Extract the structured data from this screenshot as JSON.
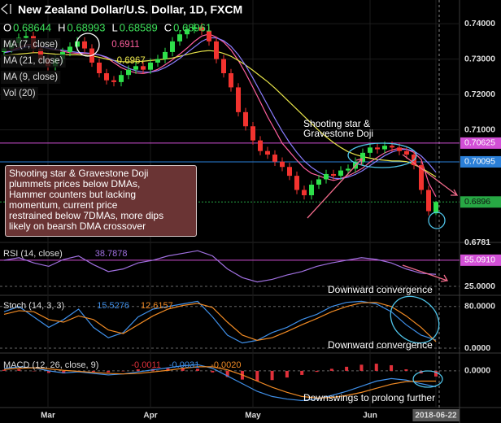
{
  "chart_data": [
    {
      "type": "candlestick",
      "title": "New Zealand Dollar/U.S. Dollar, 1D, FXCM",
      "ohlc_header": [
        {
          "key": "O",
          "value": 0.68644
        },
        {
          "key": "H",
          "value": 0.68993
        },
        {
          "key": "L",
          "value": 0.68589
        },
        {
          "key": "C",
          "value": 0.68961
        }
      ],
      "categories": [
        null,
        null,
        null,
        null,
        null,
        null,
        "Mar",
        null,
        null,
        null,
        null,
        null,
        null,
        null,
        null,
        null,
        null,
        null,
        null,
        null,
        "Apr",
        null,
        null,
        null,
        null,
        null,
        null,
        null,
        null,
        null,
        null,
        null,
        null,
        null,
        "May",
        null,
        null,
        null,
        null,
        null,
        null,
        null,
        null,
        null,
        null,
        null,
        null,
        null,
        null,
        null,
        "Jun",
        null,
        null,
        null,
        null,
        null,
        null,
        null,
        null,
        "2018-06-22"
      ],
      "open": [
        0.732,
        0.733,
        0.7345,
        0.736,
        0.7365,
        0.733,
        0.73,
        0.728,
        0.73,
        0.732,
        0.7335,
        0.735,
        0.733,
        0.729,
        0.726,
        0.724,
        0.7235,
        0.7255,
        0.727,
        0.728,
        0.727,
        0.729,
        0.73,
        0.732,
        0.735,
        0.737,
        0.7385,
        0.739,
        0.738,
        0.735,
        0.73,
        0.726,
        0.722,
        0.715,
        0.711,
        0.707,
        0.704,
        0.703,
        0.701,
        0.6995,
        0.697,
        0.693,
        0.6915,
        0.6945,
        0.696,
        0.6975,
        0.697,
        0.6985,
        0.699,
        0.701,
        0.7035,
        0.705,
        0.7045,
        0.7055,
        0.705,
        0.704,
        0.703,
        0.7,
        0.693,
        0.6864
      ],
      "high": [
        0.7342,
        0.7357,
        0.7372,
        0.7377,
        0.7377,
        0.7342,
        0.7312,
        0.7312,
        0.7332,
        0.7347,
        0.7362,
        0.7362,
        0.7342,
        0.7302,
        0.7272,
        0.7252,
        0.7267,
        0.7282,
        0.7292,
        0.7292,
        0.7302,
        0.7312,
        0.7332,
        0.7362,
        0.7382,
        0.7397,
        0.7402,
        0.7402,
        0.7392,
        0.7362,
        0.7312,
        0.7272,
        0.7232,
        0.7162,
        0.7122,
        0.7082,
        0.7052,
        0.7042,
        0.7022,
        0.7007,
        0.6982,
        0.6942,
        0.6957,
        0.6972,
        0.6987,
        0.6987,
        0.6997,
        0.7002,
        0.7022,
        0.7047,
        0.7062,
        0.7062,
        0.7067,
        0.7067,
        0.7062,
        0.7052,
        0.7042,
        0.7012,
        0.6942,
        0.6899
      ],
      "low": [
        0.7308,
        0.7318,
        0.7333,
        0.7348,
        0.7318,
        0.7288,
        0.7268,
        0.7268,
        0.7288,
        0.7308,
        0.7323,
        0.7318,
        0.7278,
        0.7248,
        0.7228,
        0.7223,
        0.7223,
        0.7243,
        0.7258,
        0.7258,
        0.7258,
        0.7278,
        0.7288,
        0.7308,
        0.7338,
        0.7358,
        0.7373,
        0.7368,
        0.7338,
        0.7288,
        0.7248,
        0.7208,
        0.7138,
        0.7098,
        0.7058,
        0.7028,
        0.7018,
        0.6998,
        0.6983,
        0.6958,
        0.6918,
        0.6903,
        0.6903,
        0.6933,
        0.6948,
        0.6958,
        0.6958,
        0.6973,
        0.6978,
        0.6998,
        0.7023,
        0.7033,
        0.7033,
        0.7038,
        0.7028,
        0.7018,
        0.6988,
        0.6918,
        0.6858,
        0.6859
      ],
      "close": [
        0.733,
        0.7345,
        0.736,
        0.7365,
        0.733,
        0.73,
        0.728,
        0.73,
        0.732,
        0.7335,
        0.735,
        0.733,
        0.729,
        0.726,
        0.724,
        0.7235,
        0.7255,
        0.727,
        0.728,
        0.727,
        0.729,
        0.73,
        0.732,
        0.735,
        0.737,
        0.7385,
        0.739,
        0.738,
        0.735,
        0.73,
        0.726,
        0.722,
        0.715,
        0.711,
        0.707,
        0.704,
        0.703,
        0.701,
        0.6995,
        0.697,
        0.693,
        0.6915,
        0.6945,
        0.696,
        0.6975,
        0.697,
        0.6985,
        0.699,
        0.701,
        0.7035,
        0.705,
        0.7045,
        0.7055,
        0.705,
        0.704,
        0.703,
        0.7,
        0.693,
        0.687,
        0.6896
      ],
      "up_color": "#2ee04a",
      "down_color": "#f2332f",
      "series": [
        {
          "name": "MA (7, close)",
          "color": "#ff5f9e",
          "last_label": "0.6911",
          "values": [
            0.732,
            0.7325,
            0.7332,
            0.734,
            0.7342,
            0.7336,
            0.733,
            0.7326,
            0.7322,
            0.7318,
            0.7316,
            0.7316,
            0.7315,
            0.7312,
            0.7304,
            0.729,
            0.7276,
            0.7267,
            0.7261,
            0.7259,
            0.7263,
            0.7271,
            0.7284,
            0.7298,
            0.7314,
            0.7331,
            0.735,
            0.7365,
            0.7371,
            0.7362,
            0.7348,
            0.7326,
            0.7296,
            0.726,
            0.722,
            0.7179,
            0.7137,
            0.71,
            0.7062,
            0.7038,
            0.7014,
            0.6992,
            0.6977,
            0.697,
            0.6962,
            0.6957,
            0.6962,
            0.697,
            0.698,
            0.6992,
            0.7009,
            0.7022,
            0.7035,
            0.7043,
            0.7048,
            0.7045,
            0.7036,
            0.7016,
            0.695,
            0.6911
          ]
        },
        {
          "name": "MA (21, close)",
          "color": "#e8e44a",
          "last_label": "0.6967",
          "values": [
            0.731,
            0.7312,
            0.7314,
            0.7316,
            0.7318,
            0.7318,
            0.7316,
            0.7314,
            0.7313,
            0.7312,
            0.7312,
            0.7311,
            0.7309,
            0.7305,
            0.73,
            0.7296,
            0.7293,
            0.7292,
            0.7293,
            0.7294,
            0.7296,
            0.7298,
            0.73,
            0.7303,
            0.7308,
            0.7313,
            0.7318,
            0.7322,
            0.7324,
            0.7322,
            0.7316,
            0.7308,
            0.7296,
            0.7283,
            0.7268,
            0.7252,
            0.7236,
            0.7218,
            0.7198,
            0.7178,
            0.7158,
            0.7138,
            0.7118,
            0.7098,
            0.708,
            0.7064,
            0.705,
            0.7038,
            0.703,
            0.7024,
            0.702,
            0.7016,
            0.7014,
            0.7012,
            0.7012,
            0.701,
            0.7002,
            0.6992,
            0.698,
            0.6967
          ]
        },
        {
          "name": "MA (9, close)",
          "color": "#8a7dff",
          "values": [
            0.7318,
            0.7322,
            0.7328,
            0.7334,
            0.7337,
            0.7335,
            0.7331,
            0.7328,
            0.7325,
            0.7322,
            0.7319,
            0.7318,
            0.7316,
            0.7312,
            0.7306,
            0.7296,
            0.7284,
            0.7274,
            0.7267,
            0.7263,
            0.7263,
            0.7267,
            0.7276,
            0.7288,
            0.7302,
            0.7318,
            0.7334,
            0.735,
            0.736,
            0.736,
            0.7352,
            0.7336,
            0.7312,
            0.7282,
            0.7246,
            0.7208,
            0.717,
            0.7132,
            0.7096,
            0.7064,
            0.7036,
            0.7012,
            0.6994,
            0.698,
            0.697,
            0.6963,
            0.6962,
            0.6966,
            0.6974,
            0.6985,
            0.6999,
            0.7013,
            0.7027,
            0.7037,
            0.7044,
            0.7045,
            0.704,
            0.7026,
            0.7005,
            0.698
          ]
        }
      ],
      "extra_legend": "Vol (20)",
      "ylim": [
        0.6784,
        0.7467
      ],
      "yticks": [
        {
          "value": 0.74,
          "label": "0.74000"
        },
        {
          "value": 0.73,
          "label": "0.73000"
        },
        {
          "value": 0.72,
          "label": "0.72000"
        },
        {
          "value": 0.71,
          "label": "0.71000"
        },
        0.6781
      ],
      "levels": [
        {
          "value": 0.70625,
          "color": "#d24fd6"
        },
        {
          "value": 0.70095,
          "color": "#2a7fd8"
        },
        {
          "value": 0.6896,
          "color": "#27a844"
        }
      ],
      "pattern_note": [
        "Shooting star &",
        "Gravestone Doji"
      ],
      "callout": [
        "Shooting star & Gravestone Doji",
        "plummets prices below DMAs,",
        "Hammer counters but lacking",
        "momentum, current price",
        "restrained below 7DMAs, more dips",
        "likely on bearsh DMA crossover"
      ]
    },
    {
      "type": "line",
      "title": "RSI (14, close)",
      "series": [
        {
          "color": "#a070e0",
          "last_label": "38.7878",
          "values": [
            55,
            58,
            52,
            48,
            56,
            60,
            50,
            42,
            45,
            52,
            55,
            60,
            63,
            66,
            60,
            45,
            35,
            30,
            33,
            38,
            42,
            48,
            52,
            55,
            58,
            56,
            52,
            45,
            40,
            38.7878
          ]
        }
      ],
      "ylim": [
        15.6,
        73.7
      ],
      "yticks": [
        {
          "value": 25,
          "label": "25.0000"
        }
      ],
      "levels": [
        {
          "value": 55.091,
          "label": "55.0910",
          "color": "#d24fd6"
        }
      ],
      "annotation": "Downward convergence"
    },
    {
      "type": "line",
      "title": "Stoch (14, 3, 3)",
      "series": [
        {
          "color": "#3f8fe8",
          "last_label": "15.5276",
          "values": [
            70,
            80,
            60,
            40,
            55,
            75,
            40,
            20,
            30,
            60,
            75,
            80,
            85,
            90,
            60,
            25,
            10,
            15,
            30,
            40,
            55,
            65,
            80,
            88,
            90,
            85,
            70,
            45,
            25,
            15.5276
          ]
        },
        {
          "color": "#f08a24",
          "last_label": "12.6157",
          "values": [
            65,
            72,
            70,
            55,
            50,
            62,
            55,
            35,
            28,
            45,
            62,
            75,
            82,
            86,
            78,
            50,
            25,
            15,
            20,
            32,
            45,
            57,
            70,
            80,
            87,
            88,
            80,
            62,
            40,
            12.6157
          ]
        }
      ],
      "ylim": [
        0,
        100
      ],
      "yticks": [
        {
          "value": 80,
          "label": "80.0000"
        },
        {
          "value": 0,
          "label": "0.0000"
        }
      ],
      "annotation": "Downward convergence"
    },
    {
      "type": "macd",
      "title": "MACD (12, 26, close, 9)",
      "histogram": {
        "color": "#e0303a",
        "last_label": "-0.0011",
        "values": [
          0.0002,
          0.0003,
          0.0,
          -0.0004,
          -0.0005,
          -0.0001,
          -0.0002,
          -0.0003,
          0.0,
          0.0003,
          0.0004,
          0.0005,
          0.0005,
          0.0004,
          -0.0003,
          -0.0012,
          -0.0017,
          -0.002,
          -0.0018,
          -0.0013,
          -0.0008,
          -0.0002,
          0.0004,
          0.0008,
          0.0012,
          0.0014,
          0.0011,
          0.0003,
          -0.0005,
          -0.0011
        ]
      },
      "series": [
        {
          "color": "#3f8fe8",
          "last_label": "-0.0031",
          "values": [
            0.0005,
            0.0008,
            0.0006,
            0.0,
            -0.0004,
            -0.0002,
            -0.0005,
            -0.0008,
            -0.0006,
            -0.0002,
            0.0002,
            0.0006,
            0.001,
            0.0012,
            0.0005,
            -0.001,
            -0.0025,
            -0.004,
            -0.005,
            -0.0055,
            -0.0058,
            -0.0055,
            -0.0048,
            -0.004,
            -0.003,
            -0.002,
            -0.0015,
            -0.0018,
            -0.0025,
            -0.0031
          ]
        },
        {
          "color": "#f08a24",
          "last_label": "-0.0020",
          "values": [
            0.0003,
            0.0005,
            0.0006,
            0.0004,
            0.0001,
            -0.0001,
            -0.0003,
            -0.0005,
            -0.0006,
            -0.0005,
            -0.0002,
            0.0001,
            0.0005,
            0.0008,
            0.0008,
            0.0002,
            -0.0008,
            -0.002,
            -0.0032,
            -0.0042,
            -0.005,
            -0.0053,
            -0.0052,
            -0.0048,
            -0.0042,
            -0.0034,
            -0.0026,
            -0.0021,
            -0.002,
            -0.002
          ]
        }
      ],
      "ylim": [
        -0.007,
        0.003
      ],
      "yticks": [
        {
          "value": 0,
          "label": "0.0000"
        }
      ],
      "annotation": "Downswings to prolong further"
    }
  ]
}
